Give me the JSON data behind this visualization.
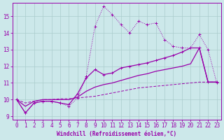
{
  "xlabel": "Windchill (Refroidissement éolien,°C)",
  "bg_color": "#cce8ea",
  "line_color": "#9900aa",
  "grid_color": "#aacccc",
  "xlim": [
    -0.5,
    23.5
  ],
  "ylim": [
    8.8,
    15.8
  ],
  "yticks": [
    9,
    10,
    11,
    12,
    13,
    14,
    15
  ],
  "xticks": [
    0,
    1,
    2,
    3,
    4,
    5,
    6,
    7,
    8,
    9,
    10,
    11,
    12,
    13,
    14,
    15,
    16,
    17,
    18,
    19,
    20,
    21,
    22,
    23
  ],
  "line_dotted_x": [
    0,
    1,
    2,
    3,
    4,
    5,
    6,
    7,
    8,
    9,
    10,
    11,
    12,
    13,
    14,
    15,
    16,
    17,
    18,
    19,
    20,
    21,
    22,
    23
  ],
  "line_dotted_y": [
    10.0,
    9.2,
    9.8,
    9.9,
    9.9,
    9.8,
    9.6,
    10.1,
    11.4,
    14.4,
    15.6,
    15.1,
    14.5,
    14.0,
    14.7,
    14.5,
    14.6,
    13.6,
    13.2,
    13.1,
    13.1,
    13.9,
    13.0,
    11.0
  ],
  "line_solid_markers_x": [
    0,
    1,
    2,
    3,
    4,
    5,
    6,
    7,
    8,
    9,
    10,
    11,
    12,
    13,
    14,
    15,
    16,
    17,
    18,
    19,
    20,
    21,
    22,
    23
  ],
  "line_solid_markers_y": [
    10.0,
    9.2,
    9.8,
    9.9,
    9.9,
    9.8,
    9.7,
    10.35,
    11.3,
    11.8,
    11.5,
    11.6,
    11.9,
    12.0,
    12.1,
    12.2,
    12.35,
    12.5,
    12.65,
    12.85,
    13.1,
    13.1,
    11.05,
    11.05
  ],
  "line_smooth_x": [
    0,
    1,
    2,
    3,
    4,
    5,
    6,
    7,
    8,
    9,
    10,
    11,
    12,
    13,
    14,
    15,
    16,
    17,
    18,
    19,
    20,
    21,
    22,
    23
  ],
  "line_smooth_y": [
    10.0,
    9.6,
    9.9,
    10.0,
    10.0,
    10.0,
    10.0,
    10.15,
    10.5,
    10.75,
    10.9,
    11.0,
    11.15,
    11.3,
    11.45,
    11.55,
    11.7,
    11.8,
    11.9,
    12.0,
    12.15,
    13.1,
    11.05,
    11.05
  ],
  "line_flat_x": [
    0,
    1,
    2,
    3,
    4,
    5,
    6,
    7,
    8,
    9,
    10,
    11,
    12,
    13,
    14,
    15,
    16,
    17,
    18,
    19,
    20,
    21,
    22,
    23
  ],
  "line_flat_y": [
    10.0,
    9.8,
    9.9,
    10.0,
    10.0,
    10.05,
    10.05,
    10.1,
    10.15,
    10.2,
    10.3,
    10.4,
    10.5,
    10.6,
    10.7,
    10.75,
    10.8,
    10.85,
    10.9,
    10.95,
    11.0,
    11.05,
    11.05,
    11.05
  ]
}
